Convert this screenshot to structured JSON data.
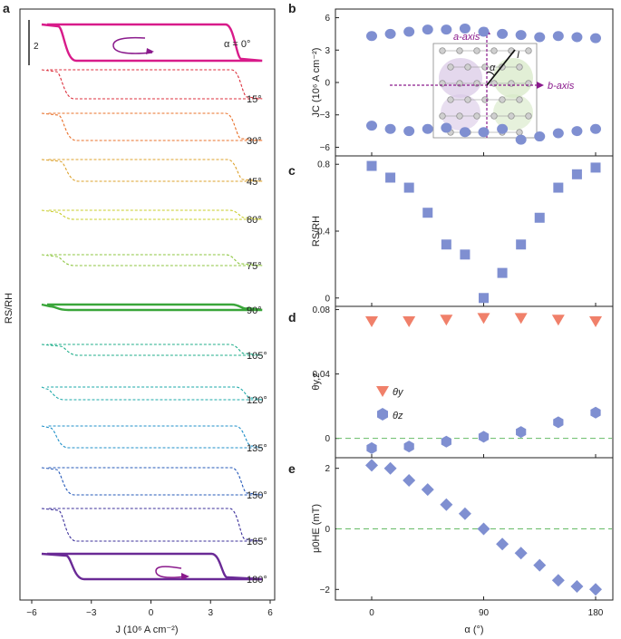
{
  "colors": {
    "marker_blue": "#7f8fd1",
    "marker_red": "#f0806a",
    "zero_line": "#66bb66",
    "axis": "#222222",
    "purple": "#8a1a8c"
  },
  "panel_labels": {
    "a": "a",
    "b": "b",
    "c": "c",
    "d": "d",
    "e": "e"
  },
  "panel_a": {
    "xlabel": "J (10⁶ A cm⁻²)",
    "ylabel": "RS/RH",
    "scale_bar_label": "2",
    "xticks": [
      "−6",
      "−3",
      "0",
      "3",
      "6"
    ],
    "traces": [
      {
        "label": "α = 0°",
        "color": "#d81b8a",
        "style": "solid"
      },
      {
        "label": "15°",
        "color": "#dc2f3c",
        "style": "dashed"
      },
      {
        "label": "30°",
        "color": "#e8702a",
        "style": "dashed"
      },
      {
        "label": "45°",
        "color": "#dca12b",
        "style": "dashed"
      },
      {
        "label": "60°",
        "color": "#c8cc2a",
        "style": "dashed"
      },
      {
        "label": "75°",
        "color": "#8dc63f",
        "style": "dashed"
      },
      {
        "label": "90°",
        "color": "#3aa63a",
        "style": "solid"
      },
      {
        "label": "105°",
        "color": "#1fae8a",
        "style": "dashed"
      },
      {
        "label": "120°",
        "color": "#1ba8a8",
        "style": "dashed"
      },
      {
        "label": "135°",
        "color": "#1f8fc8",
        "style": "dashed"
      },
      {
        "label": "150°",
        "color": "#2458b8",
        "style": "dashed"
      },
      {
        "label": "165°",
        "color": "#3b2f9a",
        "style": "dashed"
      },
      {
        "label": "180°",
        "color": "#6a2a96",
        "style": "solid"
      }
    ]
  },
  "chart_data": [
    {
      "panel": "b",
      "type": "scatter",
      "ylabel": "JC (10⁶ A cm⁻²)",
      "ylim": [
        -6.8,
        6.8
      ],
      "yticks": [
        "6",
        "3",
        "0",
        "−3",
        "−6"
      ],
      "x": [
        0,
        15,
        30,
        45,
        60,
        75,
        90,
        105,
        120,
        135,
        150,
        165,
        180
      ],
      "series": [
        {
          "name": "positive",
          "values": [
            4.3,
            4.5,
            4.7,
            4.9,
            4.9,
            5.0,
            4.7,
            4.5,
            4.4,
            4.2,
            4.3,
            4.2,
            4.1
          ]
        },
        {
          "name": "negative",
          "values": [
            -4.0,
            -4.3,
            -4.5,
            -4.3,
            -4.2,
            -4.6,
            -4.6,
            -4.3,
            -5.3,
            -5.0,
            -4.7,
            -4.5,
            -4.3
          ]
        }
      ],
      "inset": {
        "a_axis": "a-axis",
        "b_axis": "b-axis",
        "angle": "α",
        "current": "I"
      }
    },
    {
      "panel": "c",
      "type": "scatter",
      "ylabel": "RS/RH",
      "ylim": [
        -0.05,
        0.85
      ],
      "yticks": [
        "0.8",
        "0.4",
        "0"
      ],
      "x": [
        0,
        15,
        30,
        45,
        60,
        75,
        90,
        105,
        120,
        135,
        150,
        165,
        180
      ],
      "values": [
        0.79,
        0.72,
        0.66,
        0.51,
        0.32,
        0.26,
        0.0,
        0.15,
        0.32,
        0.48,
        0.66,
        0.74,
        0.78
      ]
    },
    {
      "panel": "d",
      "type": "scatter",
      "ylabel": "θy,z",
      "ylim": [
        -0.012,
        0.082
      ],
      "yticks": [
        "0.08",
        "0.04",
        "0"
      ],
      "legend": [
        "θy",
        "θz"
      ],
      "series": [
        {
          "name": "θy",
          "x": [
            0,
            30,
            60,
            90,
            120,
            150,
            180
          ],
          "values": [
            0.073,
            0.073,
            0.074,
            0.075,
            0.075,
            0.074,
            0.073
          ]
        },
        {
          "name": "θz",
          "x": [
            0,
            30,
            60,
            90,
            120,
            150,
            180
          ],
          "values": [
            -0.006,
            -0.005,
            -0.002,
            0.001,
            0.004,
            0.01,
            0.016
          ]
        }
      ]
    },
    {
      "panel": "e",
      "type": "scatter",
      "ylabel": "μ0HE (mT)",
      "xlabel": "α (°)",
      "ylim": [
        -2.35,
        2.35
      ],
      "yticks": [
        "2",
        "0",
        "−2"
      ],
      "xticks": [
        "0",
        "90",
        "180"
      ],
      "x": [
        0,
        15,
        30,
        45,
        60,
        75,
        90,
        105,
        120,
        135,
        150,
        165,
        180
      ],
      "values": [
        2.1,
        2.0,
        1.6,
        1.3,
        0.8,
        0.5,
        0.0,
        -0.5,
        -0.8,
        -1.2,
        -1.7,
        -1.9,
        -2.0
      ]
    }
  ]
}
